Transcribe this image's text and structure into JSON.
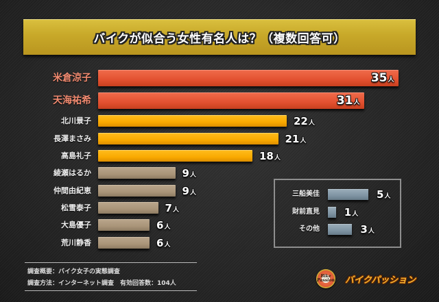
{
  "title": "バイクが似合う女性有名人は？（複数回答可）",
  "unit": "人",
  "colors": {
    "top": "#e2502f",
    "mid": "#f9a900",
    "low": "#a99478",
    "other": "#7e93a2",
    "banner": "#c9aa2a"
  },
  "chart_data": {
    "type": "bar",
    "orientation": "horizontal",
    "title": "バイクが似合う女性有名人は？（複数回答可）",
    "xlabel": "",
    "ylabel": "",
    "unit": "人",
    "grid": false,
    "categories": [
      "米倉涼子",
      "天海祐希",
      "北川景子",
      "長澤まさみ",
      "高島礼子",
      "綾瀬はるか",
      "仲間由紀恵",
      "松雪泰子",
      "大島優子",
      "荒川静香"
    ],
    "values": [
      35,
      31,
      22,
      21,
      18,
      9,
      9,
      7,
      6,
      6
    ],
    "inset": {
      "categories": [
        "三船美佳",
        "財前直見",
        "その他"
      ],
      "values": [
        5,
        1,
        3
      ]
    }
  },
  "rows": [
    {
      "name": "米倉涼子",
      "value": "35",
      "tier": "top"
    },
    {
      "name": "天海祐希",
      "value": "31",
      "tier": "top"
    },
    {
      "name": "北川景子",
      "value": "22",
      "tier": "mid"
    },
    {
      "name": "長澤まさみ",
      "value": "21",
      "tier": "mid"
    },
    {
      "name": "高島礼子",
      "value": "18",
      "tier": "mid"
    },
    {
      "name": "綾瀬はるか",
      "value": "9",
      "tier": "low"
    },
    {
      "name": "仲間由紀恵",
      "value": "9",
      "tier": "low"
    },
    {
      "name": "松雪泰子",
      "value": "7",
      "tier": "low"
    },
    {
      "name": "大島優子",
      "value": "6",
      "tier": "low"
    },
    {
      "name": "荒川静香",
      "value": "6",
      "tier": "low"
    }
  ],
  "others": [
    {
      "name": "三船美佳",
      "value": "5"
    },
    {
      "name": "財前直見",
      "value": "1"
    },
    {
      "name": "その他",
      "value": "3"
    }
  ],
  "footer": {
    "line1": "調査概要：バイク女子の実態調査",
    "line2": "調査方法：インターネット調査　有効回答数：104人"
  },
  "brand": {
    "logo_line1": "Bike",
    "logo_line2": "Passion",
    "name": "バイクパッション"
  }
}
